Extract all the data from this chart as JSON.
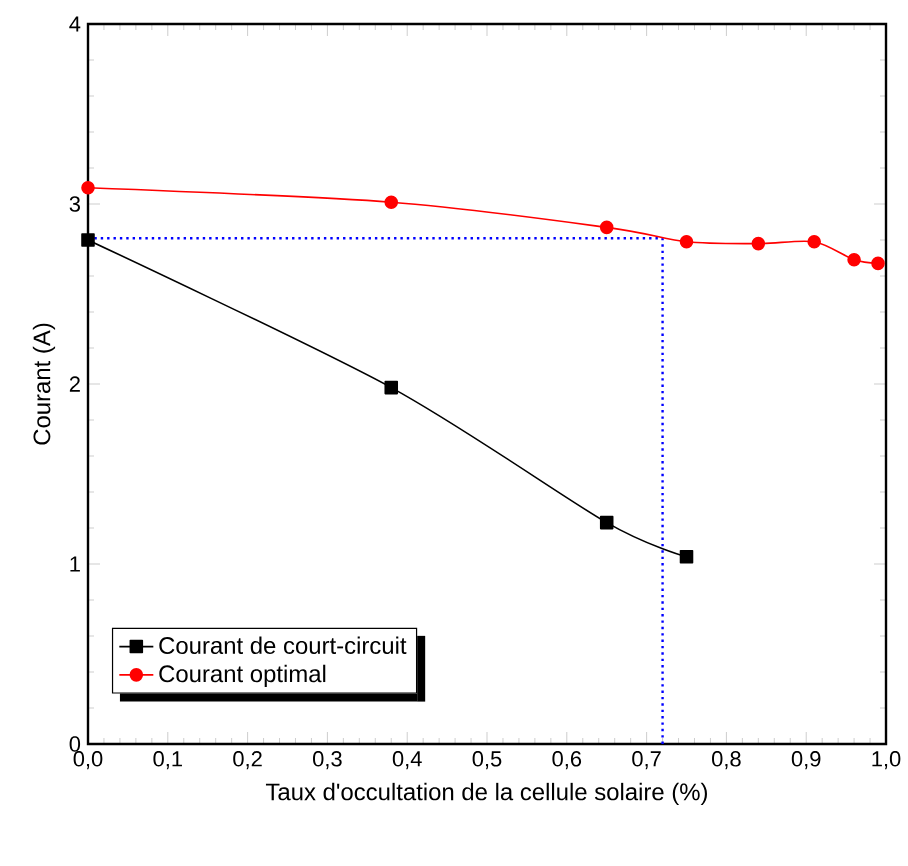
{
  "chart_data": {
    "type": "line",
    "xlabel": "Taux d'occultation de la cellule solaire (%)",
    "ylabel": "Courant (A)",
    "xlim": [
      0,
      1
    ],
    "ylim": [
      0,
      4
    ],
    "xticks": [
      {
        "value": 0,
        "label": "0,0"
      },
      {
        "value": 0.1,
        "label": "0,1"
      },
      {
        "value": 0.2,
        "label": "0,2"
      },
      {
        "value": 0.3,
        "label": "0,3"
      },
      {
        "value": 0.4,
        "label": "0,4"
      },
      {
        "value": 0.5,
        "label": "0,5"
      },
      {
        "value": 0.6,
        "label": "0,6"
      },
      {
        "value": 0.7,
        "label": "0,7"
      },
      {
        "value": 0.8,
        "label": "0,8"
      },
      {
        "value": 0.9,
        "label": "0,9"
      },
      {
        "value": 1,
        "label": "1,0"
      }
    ],
    "yticks": [
      0,
      1,
      2,
      3,
      4
    ],
    "series": [
      {
        "name": "Courant de court-circuit",
        "color": "#000000",
        "marker": "square",
        "x": [
          0,
          0.38,
          0.65,
          0.75
        ],
        "values": [
          2.8,
          1.98,
          1.23,
          1.04
        ]
      },
      {
        "name": "Courant optimal",
        "color": "#ff0000",
        "marker": "circle",
        "x": [
          0,
          0.38,
          0.65,
          0.75,
          0.84,
          0.91,
          0.96,
          0.99
        ],
        "values": [
          3.09,
          3.01,
          2.87,
          2.79,
          2.78,
          2.79,
          2.69,
          2.67
        ]
      }
    ],
    "ref_lines": [
      {
        "axis": "y",
        "value": 2.81,
        "color": "#0000ff",
        "line_style": "dotted"
      },
      {
        "axis": "x",
        "value": 0.72,
        "color": "#0000ff",
        "line_style": "dotted"
      }
    ],
    "grid": false,
    "legend": "bottom left"
  }
}
